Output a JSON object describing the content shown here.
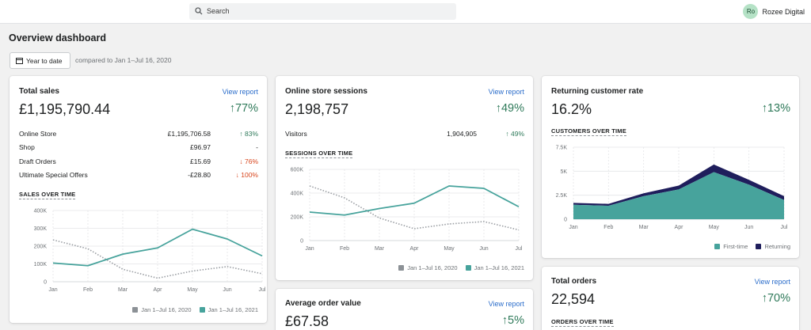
{
  "search": {
    "placeholder": "Search"
  },
  "user": {
    "initials": "Ro",
    "name": "Rozee Digital"
  },
  "page": {
    "title": "Overview dashboard",
    "date_button": "Year to date",
    "compare_text": "compared to Jan 1–Jul 16, 2020"
  },
  "colors": {
    "current": "#47a39c",
    "previous": "#8c9196",
    "returning": "#1f1e5c",
    "accent_link": "#2c6ecb",
    "positive": "#2f7a5a",
    "negative": "#d8451c"
  },
  "total_sales": {
    "title": "Total sales",
    "link": "View report",
    "value": "£1,195,790.44",
    "change": "↑77%",
    "rows": [
      {
        "name": "Online Store",
        "value": "£1,195,706.58",
        "change": "↑ 83%",
        "dir": "up"
      },
      {
        "name": "Shop",
        "value": "£96.97",
        "change": "-",
        "dir": "none"
      },
      {
        "name": "Draft Orders",
        "value": "£15.69",
        "change": "↓ 76%",
        "dir": "down"
      },
      {
        "name": "Ultimate Special Offers",
        "value": "-£28.80",
        "change": "↓ 100%",
        "dir": "down"
      }
    ],
    "chart_label": "SALES OVER TIME",
    "legend": [
      "Jan 1–Jul 16, 2020",
      "Jan 1–Jul 16, 2021"
    ]
  },
  "sessions": {
    "title": "Online store sessions",
    "link": "View report",
    "value": "2,198,757",
    "change": "↑49%",
    "rows": [
      {
        "name": "Visitors",
        "value": "1,904,905",
        "change": "↑ 49%",
        "dir": "up"
      }
    ],
    "chart_label": "SESSIONS OVER TIME",
    "legend": [
      "Jan 1–Jul 16, 2020",
      "Jan 1–Jul 16, 2021"
    ]
  },
  "aov": {
    "title": "Average order value",
    "link": "View report",
    "value": "£67.58",
    "change": "↑5%"
  },
  "returning": {
    "title": "Returning customer rate",
    "value": "16.2%",
    "change": "↑13%",
    "chart_label": "CUSTOMERS OVER TIME",
    "legend": [
      "First-time",
      "Returning"
    ]
  },
  "orders": {
    "title": "Total orders",
    "link": "View report",
    "value": "22,594",
    "change": "↑70%",
    "chart_label": "ORDERS OVER TIME"
  },
  "chart_data": [
    {
      "type": "line",
      "title": "SALES OVER TIME",
      "categories": [
        "Jan",
        "Feb",
        "Mar",
        "Apr",
        "May",
        "Jun",
        "Jul"
      ],
      "yticks": [
        "0",
        "100K",
        "200K",
        "300K",
        "400K"
      ],
      "ylim": [
        0,
        400000
      ],
      "series": [
        {
          "name": "Jan 1–Jul 16, 2020",
          "style": "dotted",
          "values": [
            235000,
            185000,
            70000,
            20000,
            60000,
            85000,
            45000
          ]
        },
        {
          "name": "Jan 1–Jul 16, 2021",
          "style": "solid",
          "values": [
            105000,
            90000,
            155000,
            190000,
            295000,
            240000,
            145000
          ]
        }
      ]
    },
    {
      "type": "line",
      "title": "SESSIONS OVER TIME",
      "categories": [
        "Jan",
        "Feb",
        "Mar",
        "Apr",
        "May",
        "Jun",
        "Jul"
      ],
      "yticks": [
        "0",
        "200K",
        "400K",
        "600K"
      ],
      "ylim": [
        0,
        600000
      ],
      "series": [
        {
          "name": "Jan 1–Jul 16, 2020",
          "style": "dotted",
          "values": [
            460000,
            360000,
            190000,
            100000,
            140000,
            160000,
            90000
          ]
        },
        {
          "name": "Jan 1–Jul 16, 2021",
          "style": "solid",
          "values": [
            240000,
            215000,
            270000,
            315000,
            460000,
            440000,
            285000
          ]
        }
      ]
    },
    {
      "type": "area",
      "title": "CUSTOMERS OVER TIME",
      "categories": [
        "Jan",
        "Feb",
        "Mar",
        "Apr",
        "May",
        "Jun",
        "Jul"
      ],
      "yticks": [
        "0",
        "2.5K",
        "5K",
        "7.5K"
      ],
      "ylim": [
        0,
        7500
      ],
      "stacked": true,
      "series": [
        {
          "name": "First-time",
          "values": [
            1500,
            1400,
            2400,
            3100,
            4900,
            3600,
            2000
          ]
        },
        {
          "name": "Returning",
          "values": [
            200,
            200,
            300,
            400,
            800,
            500,
            400
          ]
        }
      ]
    }
  ]
}
